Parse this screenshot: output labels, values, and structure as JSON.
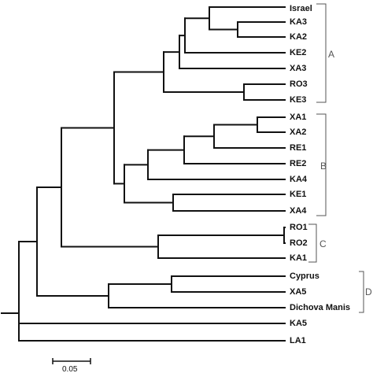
{
  "tree": {
    "type": "phylogenetic-tree",
    "leaves": [
      "Israel",
      "KA3",
      "KA2",
      "KE2",
      "XA3",
      "RO3",
      "KE3",
      "XA1",
      "XA2",
      "RE1",
      "RE2",
      "KA4",
      "KE1",
      "XA4",
      "RO1",
      "RO2",
      "KA1",
      "Cyprus",
      "XA5",
      "Dichova Manis",
      "KA5",
      "LA1"
    ],
    "clades": [
      {
        "label": "A",
        "members": [
          "Israel",
          "KA3",
          "KA2",
          "KE2",
          "XA3",
          "RO3",
          "KE3"
        ]
      },
      {
        "label": "B",
        "members": [
          "XA1",
          "XA2",
          "RE1",
          "RE2",
          "KA4",
          "KE1",
          "XA4"
        ]
      },
      {
        "label": "C",
        "members": [
          "RO1",
          "RO2",
          "KA1"
        ]
      },
      {
        "label": "D",
        "members": [
          "Cyprus",
          "XA5",
          "Dichova Manis"
        ]
      }
    ],
    "scale_bar": {
      "label": "0.05",
      "value": 0.05
    },
    "colors": {
      "lines": "#111111",
      "brackets": "#555555"
    }
  }
}
